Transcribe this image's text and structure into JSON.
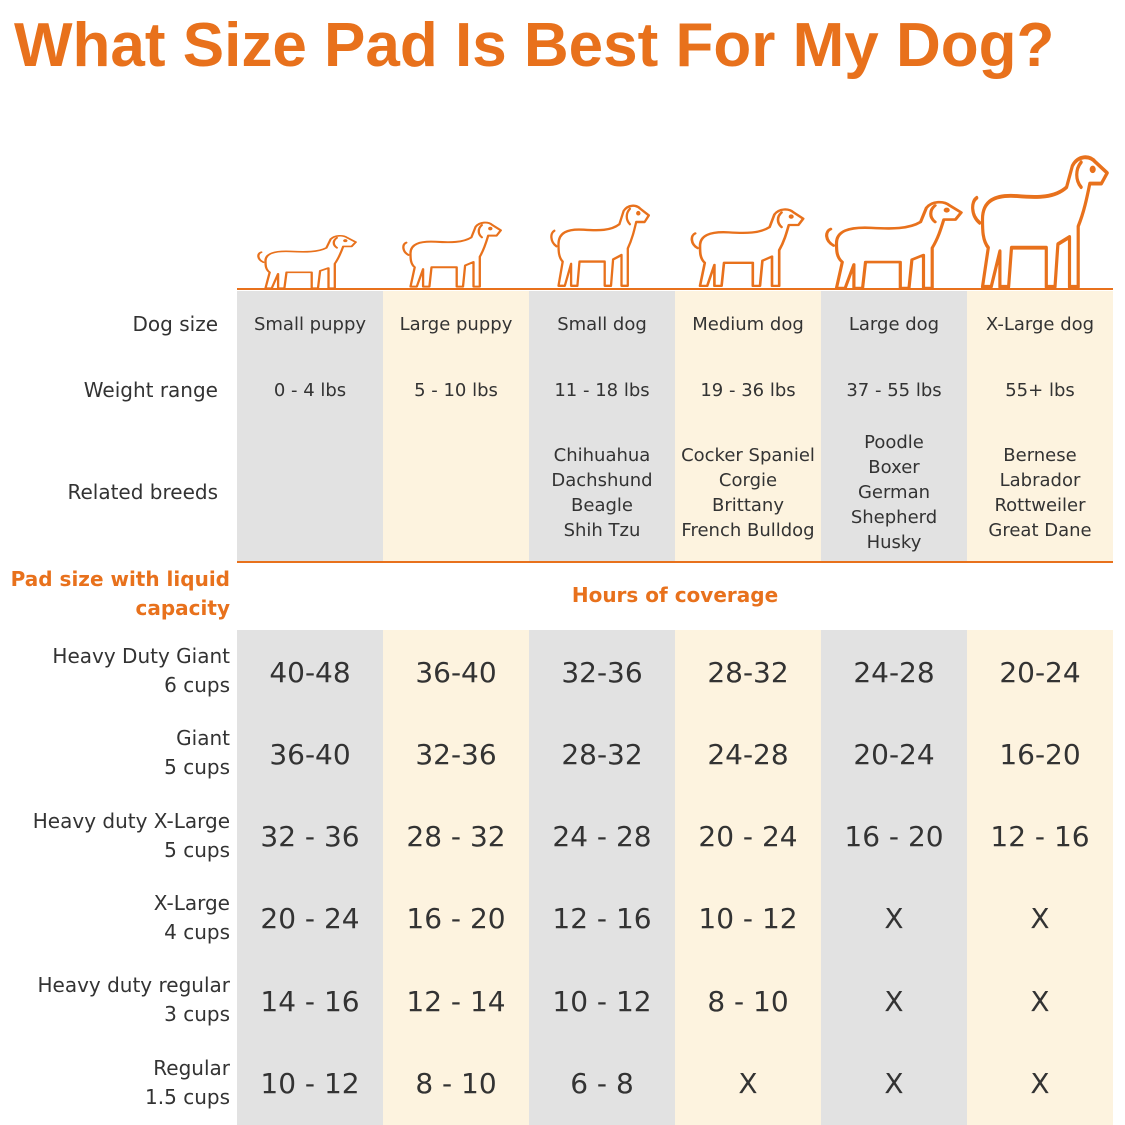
{
  "title": "What Size Pad Is Best For My Dog?",
  "row_labels": {
    "dog_size": "Dog size",
    "weight_range": "Weight range",
    "related_breeds": "Related breeds"
  },
  "dogs": [
    {
      "size": "Small puppy",
      "weight": "0 - 4 lbs",
      "breeds": []
    },
    {
      "size": "Large puppy",
      "weight": "5 - 10 lbs",
      "breeds": []
    },
    {
      "size": "Small dog",
      "weight": "11 - 18 lbs",
      "breeds": [
        "Chihuahua",
        "Dachshund",
        "Beagle",
        "Shih Tzu"
      ]
    },
    {
      "size": "Medium dog",
      "weight": "19 - 36 lbs",
      "breeds": [
        "Cocker Spaniel",
        "Corgie",
        "Brittany",
        "French Bulldog"
      ]
    },
    {
      "size": "Large dog",
      "weight": "37 - 55 lbs",
      "breeds": [
        "Poodle",
        "Boxer",
        "German Shepherd",
        "Husky"
      ]
    },
    {
      "size": "X-Large dog",
      "weight": "55+ lbs",
      "breeds": [
        "Bernese",
        "Labrador",
        "Rottweiler",
        "Great Dane"
      ]
    }
  ],
  "pad_header": "Pad size with liquid capacity",
  "coverage_header": "Hours of coverage",
  "pads": [
    {
      "name": "Heavy Duty Giant",
      "capacity": "6 cups",
      "hours": [
        "40-48",
        "36-40",
        "32-36",
        "28-32",
        "24-28",
        "20-24"
      ]
    },
    {
      "name": "Giant",
      "capacity": "5 cups",
      "hours": [
        "36-40",
        "32-36",
        "28-32",
        "24-28",
        "20-24",
        "16-20"
      ]
    },
    {
      "name": "Heavy duty X-Large",
      "capacity": "5 cups",
      "hours": [
        "32 - 36",
        "28 - 32",
        "24 - 28",
        "20 - 24",
        "16 - 20",
        "12 - 16"
      ]
    },
    {
      "name": "X-Large",
      "capacity": "4 cups",
      "hours": [
        "20 - 24",
        "16 - 20",
        "12 - 16",
        "10 - 12",
        "X",
        "X"
      ]
    },
    {
      "name": "Heavy duty regular",
      "capacity": "3 cups",
      "hours": [
        "14 - 16",
        "12 - 14",
        "10 - 12",
        "8 - 10",
        "X",
        "X"
      ]
    },
    {
      "name": "Regular",
      "capacity": "1.5 cups",
      "hours": [
        "10 - 12",
        "8 - 10",
        "6 - 8",
        "X",
        "X",
        "X"
      ]
    }
  ]
}
